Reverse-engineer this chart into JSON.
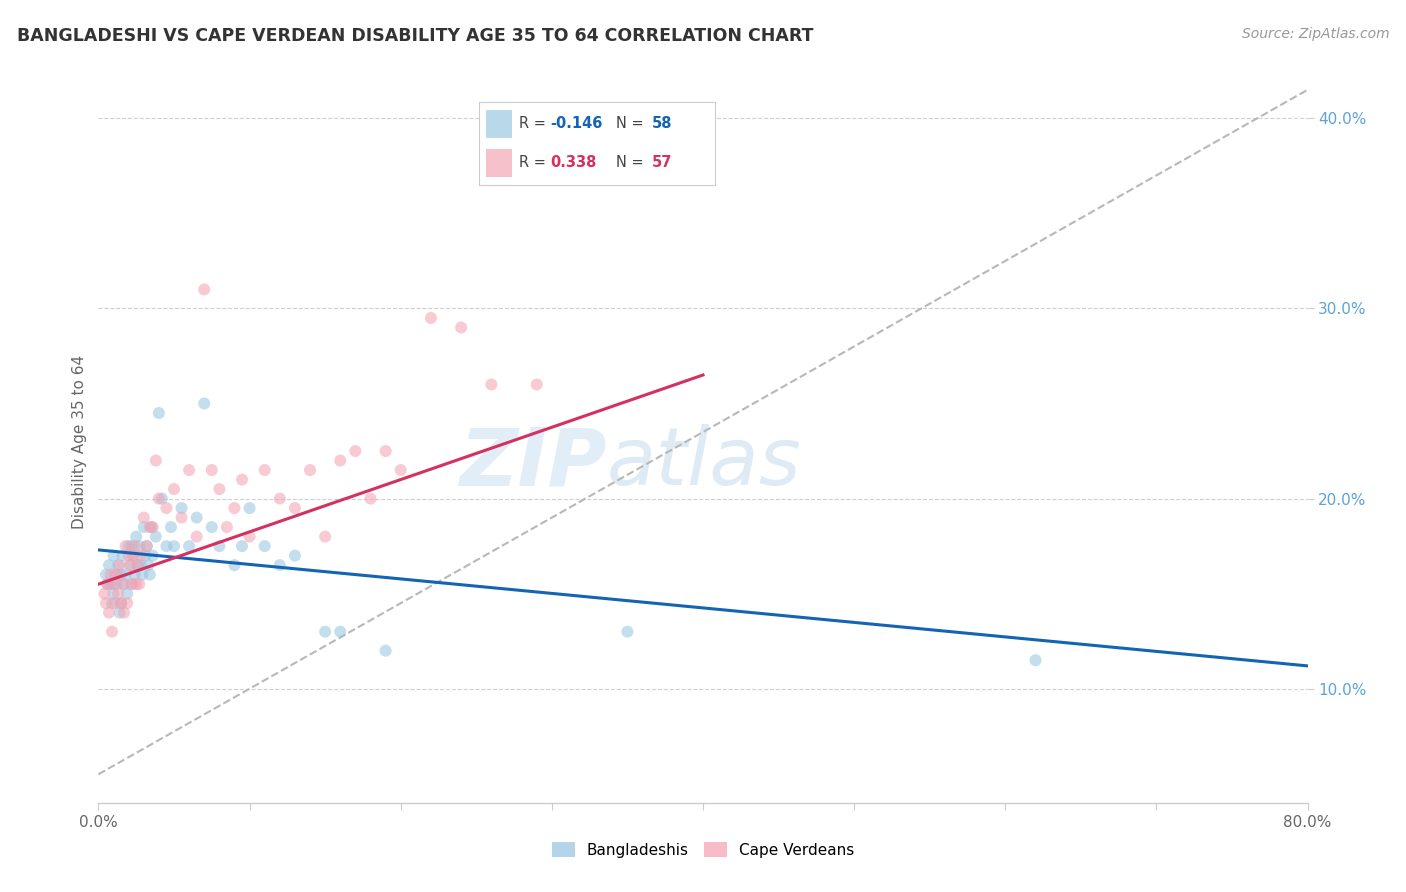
{
  "title": "BANGLADESHI VS CAPE VERDEAN DISABILITY AGE 35 TO 64 CORRELATION CHART",
  "source": "Source: ZipAtlas.com",
  "ylabel": "Disability Age 35 to 64",
  "xlim": [
    0.0,
    0.8
  ],
  "ylim": [
    0.04,
    0.42
  ],
  "y_ticks_right": [
    0.1,
    0.2,
    0.3,
    0.4
  ],
  "y_tick_labels_right": [
    "10.0%",
    "20.0%",
    "30.0%",
    "40.0%"
  ],
  "legend_r_blue": "-0.146",
  "legend_n_blue": "58",
  "legend_r_pink": "0.338",
  "legend_n_pink": "57",
  "blue_color": "#94c4e0",
  "pink_color": "#f4a0b0",
  "trend_blue_color": "#1464b4",
  "trend_pink_color": "#d43060",
  "trend_gray_color": "#b8b8b8",
  "bangladeshi_x": [
    0.005,
    0.006,
    0.007,
    0.008,
    0.009,
    0.01,
    0.01,
    0.011,
    0.012,
    0.013,
    0.014,
    0.015,
    0.015,
    0.016,
    0.017,
    0.018,
    0.019,
    0.02,
    0.021,
    0.022,
    0.022,
    0.023,
    0.024,
    0.025,
    0.026,
    0.027,
    0.028,
    0.029,
    0.03,
    0.031,
    0.032,
    0.033,
    0.034,
    0.035,
    0.036,
    0.038,
    0.04,
    0.042,
    0.045,
    0.048,
    0.05,
    0.055,
    0.06,
    0.065,
    0.07,
    0.075,
    0.08,
    0.09,
    0.095,
    0.1,
    0.11,
    0.12,
    0.13,
    0.15,
    0.16,
    0.19,
    0.35,
    0.62
  ],
  "bangladeshi_y": [
    0.16,
    0.155,
    0.165,
    0.155,
    0.145,
    0.17,
    0.15,
    0.16,
    0.155,
    0.165,
    0.14,
    0.16,
    0.145,
    0.17,
    0.155,
    0.16,
    0.15,
    0.175,
    0.165,
    0.155,
    0.175,
    0.17,
    0.16,
    0.18,
    0.165,
    0.175,
    0.165,
    0.16,
    0.185,
    0.17,
    0.175,
    0.165,
    0.16,
    0.185,
    0.17,
    0.18,
    0.245,
    0.2,
    0.175,
    0.185,
    0.175,
    0.195,
    0.175,
    0.19,
    0.25,
    0.185,
    0.175,
    0.165,
    0.175,
    0.195,
    0.175,
    0.165,
    0.17,
    0.13,
    0.13,
    0.12,
    0.13,
    0.115
  ],
  "capeverdean_x": [
    0.004,
    0.005,
    0.006,
    0.007,
    0.008,
    0.009,
    0.01,
    0.011,
    0.012,
    0.013,
    0.014,
    0.015,
    0.016,
    0.017,
    0.018,
    0.019,
    0.02,
    0.021,
    0.022,
    0.023,
    0.024,
    0.025,
    0.026,
    0.027,
    0.028,
    0.03,
    0.032,
    0.034,
    0.036,
    0.038,
    0.04,
    0.045,
    0.05,
    0.055,
    0.06,
    0.065,
    0.07,
    0.075,
    0.08,
    0.085,
    0.09,
    0.095,
    0.1,
    0.11,
    0.12,
    0.13,
    0.14,
    0.15,
    0.16,
    0.17,
    0.18,
    0.19,
    0.2,
    0.22,
    0.24,
    0.26,
    0.29
  ],
  "capeverdean_y": [
    0.15,
    0.145,
    0.155,
    0.14,
    0.16,
    0.13,
    0.155,
    0.145,
    0.16,
    0.15,
    0.165,
    0.145,
    0.155,
    0.14,
    0.175,
    0.145,
    0.17,
    0.165,
    0.155,
    0.17,
    0.175,
    0.155,
    0.165,
    0.155,
    0.17,
    0.19,
    0.175,
    0.185,
    0.185,
    0.22,
    0.2,
    0.195,
    0.205,
    0.19,
    0.215,
    0.18,
    0.31,
    0.215,
    0.205,
    0.185,
    0.195,
    0.21,
    0.18,
    0.215,
    0.2,
    0.195,
    0.215,
    0.18,
    0.22,
    0.225,
    0.2,
    0.225,
    0.215,
    0.295,
    0.29,
    0.26,
    0.26
  ],
  "watermark_zip": "ZIP",
  "watermark_atlas": "atlas",
  "marker_size": 75,
  "alpha": 0.55,
  "blue_trend_start_y": 0.173,
  "blue_trend_end_y": 0.112,
  "pink_trend_start_y": 0.155,
  "pink_trend_end_y": 0.265,
  "gray_trend_start_x": 0.0,
  "gray_trend_start_y": 0.055,
  "gray_trend_end_x": 0.8,
  "gray_trend_end_y": 0.415
}
